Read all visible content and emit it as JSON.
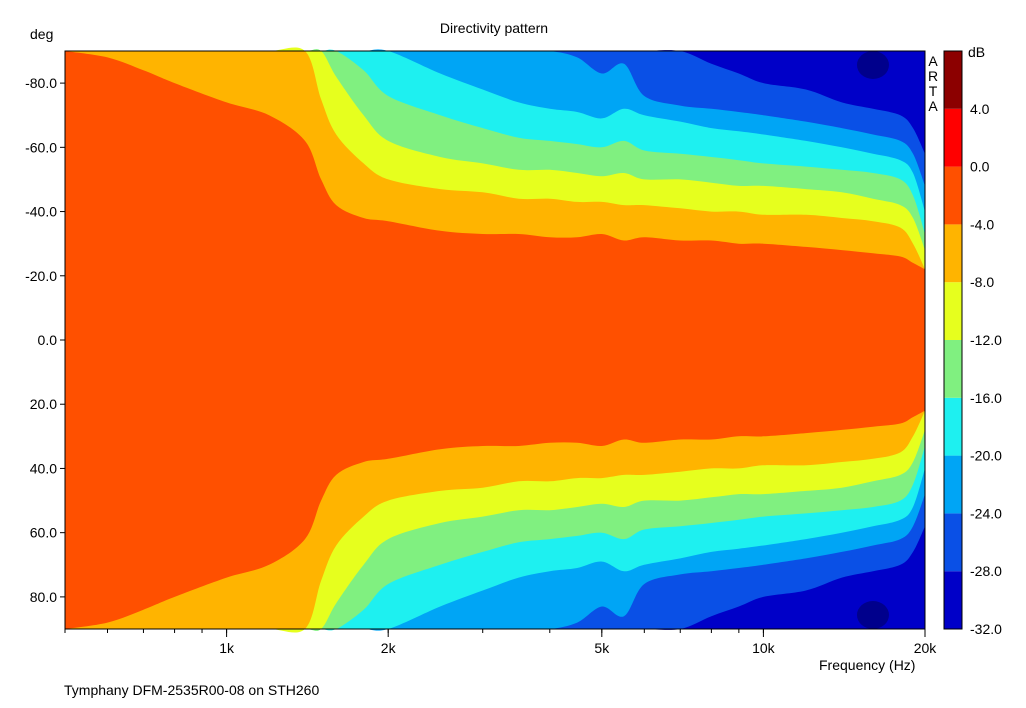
{
  "chart_data": {
    "type": "heatmap",
    "title": "Directivity pattern",
    "ylabel": "deg",
    "xlabel": "Frequency (Hz)",
    "footer": "Tymphany DFM-2535R00-08 on STH260",
    "watermark": "ARTA",
    "x_scale": "log",
    "x_range_hz": [
      500,
      20000
    ],
    "y_range_deg": [
      -90,
      90
    ],
    "x_ticks": [
      {
        "label": "1k",
        "value": 1000
      },
      {
        "label": "2k",
        "value": 2000
      },
      {
        "label": "5k",
        "value": 5000
      },
      {
        "label": "10k",
        "value": 10000
      },
      {
        "label": "20k",
        "value": 20000
      }
    ],
    "y_ticks": [
      {
        "label": "-80.0",
        "value": -80
      },
      {
        "label": "-60.0",
        "value": -60
      },
      {
        "label": "-40.0",
        "value": -40
      },
      {
        "label": "-20.0",
        "value": -20
      },
      {
        "label": "0.0",
        "value": 0
      },
      {
        "label": "20.0",
        "value": 20
      },
      {
        "label": "40.0",
        "value": 40
      },
      {
        "label": "60.0",
        "value": 60
      },
      {
        "label": "80.0",
        "value": 80
      }
    ],
    "colorbar": {
      "unit": "dB",
      "levels": [
        {
          "from": -32,
          "to": -28,
          "color": "#0000c8"
        },
        {
          "from": -28,
          "to": -24,
          "color": "#0a50e6"
        },
        {
          "from": -24,
          "to": -20,
          "color": "#00a5f5"
        },
        {
          "from": -20,
          "to": -16,
          "color": "#1ef0f0"
        },
        {
          "from": -16,
          "to": -12,
          "color": "#80f080"
        },
        {
          "from": -12,
          "to": -8,
          "color": "#e6ff1e"
        },
        {
          "from": -8,
          "to": -4,
          "color": "#ffb400"
        },
        {
          "from": -4,
          "to": 0,
          "color": "#ff5000"
        },
        {
          "from": 0,
          "to": 4,
          "color": "#ff0000"
        },
        {
          "from": 4,
          "to": 8,
          "color": "#8c0000"
        }
      ],
      "tick_labels": [
        "4.0",
        "0.0",
        "-4.0",
        "-8.0",
        "-12.0",
        "-16.0",
        "-20.0",
        "-24.0",
        "-28.0",
        "-32.0"
      ]
    },
    "contour_boundaries_deg": {
      "freq_hz": [
        500,
        600,
        700,
        800,
        1000,
        1200,
        1400,
        1500,
        1600,
        1800,
        2000,
        2500,
        3000,
        3500,
        4000,
        4500,
        5000,
        5500,
        6000,
        7000,
        8000,
        9000,
        10000,
        12000,
        14000,
        16000,
        18000,
        19000,
        20000
      ],
      "db_-4": [
        90,
        88,
        84,
        80,
        74,
        70,
        62,
        50,
        42,
        38,
        37,
        34,
        33,
        33,
        32,
        32,
        33,
        31,
        32,
        31,
        31,
        30,
        30,
        29,
        28,
        27,
        26,
        24,
        22
      ],
      "db_-8": [
        90,
        90,
        90,
        90,
        90,
        90,
        90,
        75,
        64,
        55,
        50,
        47,
        46,
        44,
        44,
        43,
        43,
        42,
        42,
        41,
        40,
        40,
        39,
        39,
        38,
        37,
        35,
        30,
        22
      ],
      "db_-12": [
        90,
        90,
        90,
        90,
        90,
        90,
        90,
        90,
        82,
        70,
        62,
        57,
        55,
        53,
        53,
        52,
        51,
        52,
        50,
        50,
        49,
        48,
        48,
        47,
        46,
        44,
        42,
        38,
        28
      ],
      "db_-16": [
        90,
        90,
        90,
        90,
        90,
        90,
        90,
        90,
        90,
        84,
        76,
        70,
        66,
        63,
        62,
        61,
        60,
        62,
        59,
        58,
        57,
        56,
        55,
        54,
        53,
        52,
        50,
        45,
        33
      ],
      "db_-20": [
        90,
        90,
        90,
        90,
        90,
        90,
        90,
        90,
        90,
        90,
        90,
        83,
        78,
        74,
        72,
        71,
        69,
        72,
        70,
        68,
        66,
        65,
        64,
        62,
        60,
        58,
        56,
        52,
        40
      ],
      "db_-24": [
        90,
        90,
        90,
        90,
        90,
        90,
        90,
        90,
        90,
        90,
        90,
        90,
        90,
        90,
        90,
        88,
        83,
        86,
        76,
        73,
        72,
        71,
        70,
        68,
        66,
        64,
        62,
        58,
        48
      ],
      "db_-28": [
        90,
        90,
        90,
        90,
        90,
        90,
        90,
        90,
        90,
        90,
        90,
        90,
        90,
        90,
        90,
        90,
        90,
        90,
        90,
        90,
        86,
        83,
        80,
        78,
        74,
        72,
        70,
        66,
        58
      ],
      "db_-32": [
        90,
        90,
        90,
        90,
        90,
        90,
        90,
        90,
        90,
        90,
        90,
        90,
        90,
        90,
        90,
        90,
        90,
        90,
        90,
        90,
        90,
        90,
        90,
        90,
        88,
        83,
        84,
        86,
        90
      ]
    },
    "grid": false,
    "legend_placement": "right"
  }
}
